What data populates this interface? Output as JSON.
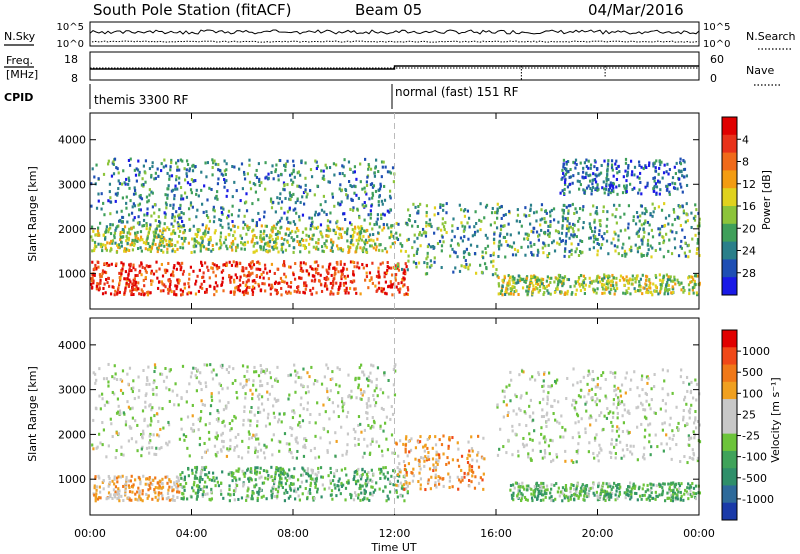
{
  "header": {
    "station": "South Pole Station (fitACF)",
    "beam": "Beam 05",
    "date": "04/Mar/2016"
  },
  "panels": {
    "nsky": {
      "left_label": "N.Sky",
      "right_label": "N.Search",
      "left_ticks": [
        "10^5",
        "10^0"
      ],
      "right_ticks": [
        "10^5",
        "10^0"
      ]
    },
    "freq": {
      "left_label_1": "Freq.",
      "left_label_2": "[MHz]",
      "right_label": "Nave",
      "left_ticks": [
        "18",
        "8"
      ],
      "right_ticks": [
        "60",
        "0"
      ]
    },
    "cpid": {
      "label": "CPID",
      "segments": [
        {
          "name": "themis 3300 RF",
          "start_hour": 0,
          "end_hour": 12
        },
        {
          "name": "normal (fast) 151 RF",
          "start_hour": 12,
          "end_hour": 24
        }
      ]
    }
  },
  "axes": {
    "ylabel": "Slant Range [km]",
    "xlabel": "Time UT",
    "y_ticks": [
      "1000",
      "2000",
      "3000",
      "4000"
    ],
    "x_ticks": [
      "00:00",
      "04:00",
      "08:00",
      "12:00",
      "16:00",
      "20:00",
      "00:00"
    ]
  },
  "colorbars": {
    "power": {
      "label": "Power [dB]",
      "ticks": [
        "4",
        "8",
        "12",
        "16",
        "20",
        "24",
        "28"
      ],
      "colors": [
        "#1a1ae6",
        "#1f4fb4",
        "#2a7f8a",
        "#3f9f5a",
        "#8cc43a",
        "#e0d21e",
        "#f39c12",
        "#f06a1a",
        "#e8321a",
        "#e00000"
      ]
    },
    "velocity": {
      "label": "Velocity [m s⁻¹]",
      "ticks": [
        "1000",
        "500",
        "100",
        "25",
        "-25",
        "-100",
        "-500",
        "-1000"
      ],
      "colors": [
        "#1a3aa8",
        "#2e6a9a",
        "#2f8f6a",
        "#3fa35a",
        "#6cc43a",
        "#c8c8c8",
        "#c8c8c8",
        "#f0a020",
        "#f07818",
        "#f04818",
        "#e00000"
      ]
    }
  },
  "chart_data": [
    {
      "type": "heatmap",
      "title": "Power",
      "x_range_hours": [
        0,
        24
      ],
      "y_range_km": [
        200,
        4600
      ],
      "colorbar_label": "Power [dB]",
      "colorbar_range": [
        0,
        30
      ],
      "bands": [
        {
          "range_km": [
            550,
            1300
          ],
          "start_hour": 0.0,
          "end_hour": 12.5,
          "power_db": 26
        },
        {
          "range_km": [
            550,
            1000
          ],
          "start_hour": 16.0,
          "end_hour": 24.0,
          "power_db": 14
        },
        {
          "range_km": [
            1500,
            2100
          ],
          "start_hour": 0.0,
          "end_hour": 12.0,
          "power_db": 14
        },
        {
          "range_km": [
            2100,
            3600
          ],
          "start_hour": 0.0,
          "end_hour": 12.0,
          "power_db": 8
        },
        {
          "range_km": [
            1000,
            2600
          ],
          "start_hour": 12.0,
          "end_hour": 16.0,
          "power_db": 10
        },
        {
          "range_km": [
            1400,
            2600
          ],
          "start_hour": 16.0,
          "end_hour": 24.0,
          "power_db": 10
        },
        {
          "range_km": [
            2800,
            3600
          ],
          "start_hour": 18.5,
          "end_hour": 23.5,
          "power_db": 6
        }
      ]
    },
    {
      "type": "heatmap",
      "title": "Velocity",
      "x_range_hours": [
        0,
        24
      ],
      "y_range_km": [
        200,
        4600
      ],
      "colorbar_label": "Velocity [m s⁻¹]",
      "colorbar_range": [
        -1000,
        1000
      ],
      "bands": [
        {
          "range_km": [
            550,
            1100
          ],
          "start_hour": 0.0,
          "end_hour": 3.5,
          "velocity": 150
        },
        {
          "range_km": [
            550,
            1300
          ],
          "start_hour": 3.5,
          "end_hour": 12.5,
          "velocity": -150
        },
        {
          "range_km": [
            800,
            2000
          ],
          "start_hour": 12.0,
          "end_hour": 15.5,
          "velocity": 200
        },
        {
          "range_km": [
            550,
            950
          ],
          "start_hour": 16.5,
          "end_hour": 24.0,
          "velocity": -150
        },
        {
          "range_km": [
            1500,
            3600
          ],
          "start_hour": 0.0,
          "end_hour": 12.0,
          "velocity": 0
        },
        {
          "range_km": [
            1400,
            3500
          ],
          "start_hour": 16.0,
          "end_hour": 24.0,
          "velocity": 0
        }
      ]
    }
  ]
}
